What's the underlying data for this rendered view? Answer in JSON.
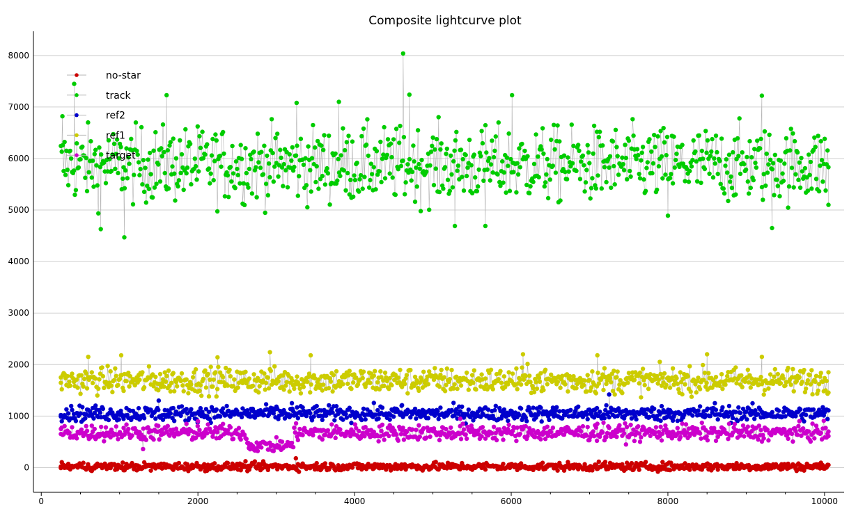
{
  "chart_data": {
    "type": "scatter",
    "title": "Composite lightcurve plot",
    "xlabel": "",
    "ylabel": "",
    "xlim": [
      -100,
      10250
    ],
    "ylim": [
      -480,
      8470
    ],
    "x_ticks": [
      0,
      2000,
      4000,
      6000,
      8000,
      10000
    ],
    "y_ticks": [
      0,
      1000,
      2000,
      3000,
      4000,
      5000,
      6000,
      7000,
      8000
    ],
    "grid": "horizontal",
    "legend_position": "top-left",
    "x_range": [
      250,
      10050
    ],
    "series": [
      {
        "name": "no-star",
        "color": "#cc0000",
        "mean": 20,
        "spread": 45,
        "keypoints": [
          [
            250,
            20
          ],
          [
            900,
            40
          ],
          [
            1850,
            -10
          ],
          [
            2600,
            30
          ],
          [
            3250,
            180
          ],
          [
            4600,
            60
          ],
          [
            6100,
            40
          ],
          [
            7200,
            110
          ],
          [
            8400,
            20
          ],
          [
            10000,
            10
          ]
        ]
      },
      {
        "name": "track",
        "color": "#00cc00",
        "mean": 5880,
        "spread": 420,
        "keypoints": [
          [
            270,
            6820
          ],
          [
            420,
            7450
          ],
          [
            760,
            4630
          ],
          [
            1060,
            4470
          ],
          [
            1600,
            7230
          ],
          [
            3260,
            7080
          ],
          [
            3800,
            7100
          ],
          [
            4620,
            8040
          ],
          [
            4700,
            7240
          ],
          [
            5280,
            4690
          ],
          [
            5670,
            4690
          ],
          [
            6010,
            7230
          ],
          [
            8000,
            4890
          ],
          [
            9200,
            7220
          ],
          [
            9330,
            4650
          ],
          [
            10050,
            5100
          ]
        ]
      },
      {
        "name": "ref2",
        "color": "#0000cc",
        "mean": 1050,
        "spread": 85,
        "keypoints": [
          [
            250,
            1020
          ],
          [
            1500,
            1300
          ],
          [
            2700,
            1140
          ],
          [
            3200,
            1250
          ],
          [
            4600,
            1200
          ],
          [
            6400,
            1050
          ],
          [
            7250,
            1420
          ],
          [
            8600,
            1250
          ],
          [
            10000,
            1100
          ]
        ]
      },
      {
        "name": "ref1",
        "color": "#cccc00",
        "mean": 1690,
        "spread": 145,
        "keypoints": [
          [
            250,
            1750
          ],
          [
            600,
            2150
          ],
          [
            1020,
            2180
          ],
          [
            2250,
            2140
          ],
          [
            2920,
            2240
          ],
          [
            3440,
            2180
          ],
          [
            6150,
            2200
          ],
          [
            7100,
            2180
          ],
          [
            8500,
            2200
          ],
          [
            9200,
            2150
          ],
          [
            10050,
            1850
          ]
        ]
      },
      {
        "name": "target",
        "color": "#cc00cc",
        "mean": 680,
        "spread": 90,
        "keypoints": [
          [
            250,
            750
          ],
          [
            1300,
            360
          ],
          [
            2000,
            900
          ],
          [
            2650,
            380
          ],
          [
            2950,
            330
          ],
          [
            3200,
            480
          ],
          [
            3300,
            750
          ],
          [
            5350,
            950
          ],
          [
            7100,
            850
          ],
          [
            10050,
            700
          ]
        ]
      }
    ],
    "segment": {
      "series": "target",
      "from": 2620,
      "to": 3220,
      "mean": 430,
      "spread": 70
    }
  }
}
